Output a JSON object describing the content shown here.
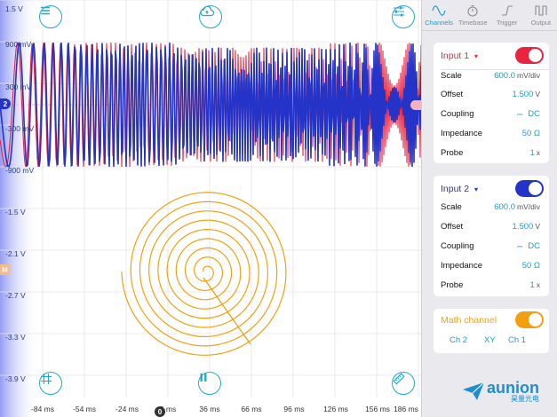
{
  "scope": {
    "y_labels": [
      "1.5 V",
      "900 mV",
      "300 mV",
      "-300 mV",
      "-900 mV",
      "-1.5 V",
      "-2.1 V",
      "-2.7 V",
      "-3.3 V",
      "-3.9 V"
    ],
    "x_labels": [
      "-84 ms",
      "-54 ms",
      "-24 ms",
      "6 ms",
      "36 ms",
      "66 ms",
      "96 ms",
      "126 ms",
      "156 ms",
      "186 ms"
    ],
    "channel_marker": "2",
    "math_marker": "M",
    "trigger_marker": "0",
    "colors": {
      "ch1": "#e8243f",
      "ch2": "#2433c8",
      "math": "#f2a010",
      "accent": "#22a8cc"
    },
    "icons": {
      "menu": "hamburger-menu-icon",
      "cloud": "cloud-upload-icon",
      "settings": "sliders-settings-icon",
      "grid": "grid-icon",
      "pause": "pause-icon",
      "ruler": "ruler-icon"
    }
  },
  "tabs": [
    {
      "label": "Channels",
      "icon": "sine-wave-icon",
      "active": true
    },
    {
      "label": "Timebase",
      "icon": "stopwatch-icon",
      "active": false
    },
    {
      "label": "Trigger",
      "icon": "trigger-edge-icon",
      "active": false
    },
    {
      "label": "Output",
      "icon": "square-wave-icon",
      "active": false
    }
  ],
  "input1": {
    "title": "Input 1",
    "dropdown": "▾",
    "enabled": true,
    "scale_label": "Scale",
    "scale_value": "600.0",
    "scale_unit": "mV/div",
    "offset_label": "Offset",
    "offset_value": "1.500",
    "offset_unit": "V",
    "coupling_label": "Coupling",
    "coupling_value": "DC",
    "impedance_label": "Impedance",
    "impedance_value": "50 Ω",
    "probe_label": "Probe",
    "probe_value": "1",
    "probe_unit": "x"
  },
  "input2": {
    "title": "Input 2",
    "dropdown": "▾",
    "enabled": true,
    "scale_label": "Scale",
    "scale_value": "600.0",
    "scale_unit": "mV/div",
    "offset_label": "Offset",
    "offset_value": "1.500",
    "offset_unit": "V",
    "coupling_label": "Coupling",
    "coupling_value": "DC",
    "impedance_label": "Impedance",
    "impedance_value": "50 Ω",
    "probe_label": "Probe",
    "probe_value": "1",
    "probe_unit": "x"
  },
  "math": {
    "title": "Math channel",
    "enabled": true,
    "options": [
      "Ch 2",
      "XY",
      "Ch 1"
    ]
  },
  "brand": {
    "name": "aunion",
    "subtitle": "昊量光电"
  }
}
